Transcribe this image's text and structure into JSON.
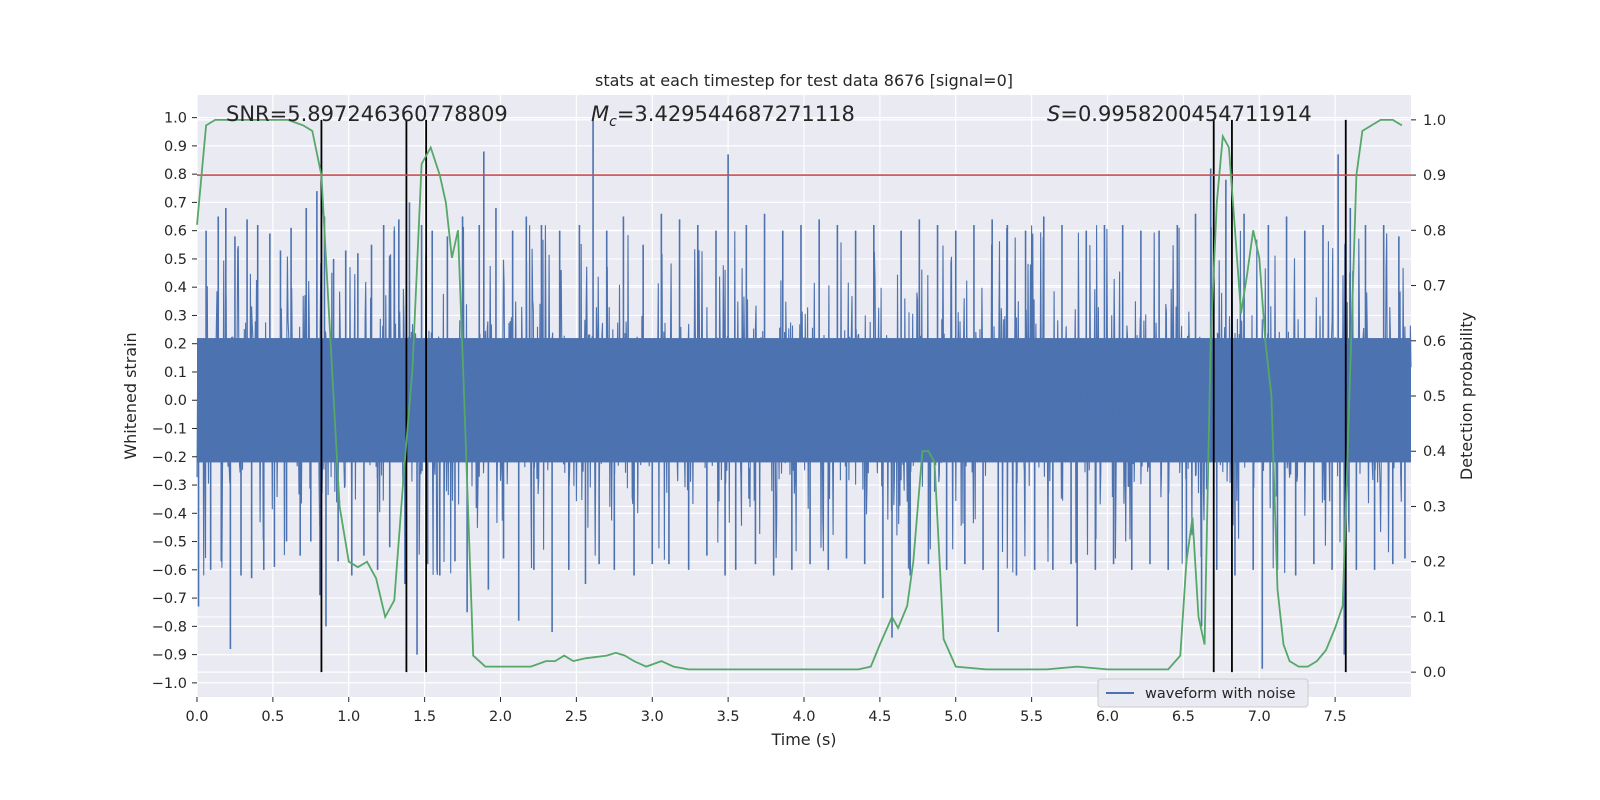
{
  "chart_data": {
    "type": "line",
    "title": "stats at each timestep for test data 8676 [signal=0]",
    "xlabel": "Time (s)",
    "ylabel": "Whitened strain",
    "y2label": "Detection probability",
    "xlim": [
      0,
      8
    ],
    "ylim": [
      -1.05,
      1.08
    ],
    "y2lim": [
      -0.045,
      1.045
    ],
    "x_ticks": [
      0.0,
      0.5,
      1.0,
      1.5,
      2.0,
      2.5,
      3.0,
      3.5,
      4.0,
      4.5,
      5.0,
      5.5,
      6.0,
      6.5,
      7.0,
      7.5
    ],
    "x_tick_labels": [
      "0.0",
      "0.5",
      "1.0",
      "1.5",
      "2.0",
      "2.5",
      "3.0",
      "3.5",
      "4.0",
      "4.5",
      "5.0",
      "5.5",
      "6.0",
      "6.5",
      "7.0",
      "7.5"
    ],
    "y_ticks": [
      1.0,
      0.9,
      0.8,
      0.7,
      0.6,
      0.5,
      0.4,
      0.3,
      0.2,
      0.1,
      0.0,
      -0.1,
      -0.2,
      -0.3,
      -0.4,
      -0.5,
      -0.6,
      -0.7,
      -0.8,
      -0.9,
      -1.0
    ],
    "y_tick_labels": [
      "1.0",
      "0.9",
      "0.8",
      "0.7",
      "0.6",
      "0.5",
      "0.4",
      "0.3",
      "0.2",
      "0.1",
      "0.0",
      "−0.1",
      "−0.2",
      "−0.3",
      "−0.4",
      "−0.5",
      "−0.6",
      "−0.7",
      "−0.8",
      "−0.9",
      "−1.0"
    ],
    "y2_ticks": [
      1.0,
      0.9,
      0.8,
      0.7,
      0.6,
      0.5,
      0.4,
      0.3,
      0.2,
      0.1,
      0.0
    ],
    "y2_tick_labels": [
      "1.0",
      "0.9",
      "0.8",
      "0.7",
      "0.6",
      "0.5",
      "0.4",
      "0.3",
      "0.2",
      "0.1",
      "0.0"
    ],
    "annotations": {
      "snr": "SNR=5.897246360778809",
      "mc_symbol": "M",
      "mc_sub": "c",
      "mc_value": "=3.429544687271118",
      "s_symbol": "S",
      "s_value": "=0.9958200454711914"
    },
    "threshold": 0.9,
    "vertical_lines_x": [
      0.82,
      1.38,
      1.51,
      6.7,
      6.82,
      7.57
    ],
    "legend": {
      "position": "lower-right",
      "entries": [
        "waveform with noise"
      ]
    },
    "grid": true,
    "series": [
      {
        "name": "waveform with noise",
        "axis": "left",
        "style": "noise",
        "color": "#4c72b0",
        "sample_count": 2000,
        "dense_band": [
          -0.43,
          0.43
        ],
        "spikes": [
          [
            0.01,
            -0.73
          ],
          [
            0.06,
            0.6
          ],
          [
            0.09,
            -0.6
          ],
          [
            0.14,
            0.65
          ],
          [
            0.16,
            -0.57
          ],
          [
            0.19,
            0.68
          ],
          [
            0.22,
            -0.88
          ],
          [
            0.25,
            0.58
          ],
          [
            0.29,
            -0.62
          ],
          [
            0.33,
            0.64
          ],
          [
            0.36,
            -0.63
          ],
          [
            0.4,
            0.62
          ],
          [
            0.44,
            -0.6
          ],
          [
            0.48,
            0.59
          ],
          [
            0.51,
            -0.59
          ],
          [
            0.55,
            0.53
          ],
          [
            0.59,
            -0.5
          ],
          [
            0.62,
            0.61
          ],
          [
            0.68,
            -0.55
          ],
          [
            0.72,
            0.68
          ],
          [
            0.75,
            -0.5
          ],
          [
            0.79,
            0.74
          ],
          [
            0.81,
            -0.69
          ],
          [
            0.84,
            0.65
          ],
          [
            0.85,
            -0.8
          ],
          [
            0.9,
            0.5
          ],
          [
            0.93,
            -0.57
          ],
          [
            0.98,
            0.53
          ],
          [
            1.02,
            -0.62
          ],
          [
            1.06,
            0.52
          ],
          [
            1.1,
            -0.55
          ],
          [
            1.15,
            0.55
          ],
          [
            1.19,
            -0.6
          ],
          [
            1.23,
            0.62
          ],
          [
            1.27,
            -0.52
          ],
          [
            1.3,
            0.6
          ],
          [
            1.33,
            0.64
          ],
          [
            1.37,
            -0.65
          ],
          [
            1.4,
            0.7
          ],
          [
            1.45,
            -0.9
          ],
          [
            1.48,
            0.62
          ],
          [
            1.52,
            -0.58
          ],
          [
            1.55,
            0.6
          ],
          [
            1.6,
            -0.62
          ],
          [
            1.65,
            0.58
          ],
          [
            1.7,
            -0.57
          ],
          [
            1.75,
            0.65
          ],
          [
            1.78,
            -0.75
          ],
          [
            1.86,
            0.62
          ],
          [
            1.89,
            0.88
          ],
          [
            1.92,
            -0.67
          ],
          [
            1.97,
            0.68
          ],
          [
            2.02,
            -0.56
          ],
          [
            2.08,
            0.6
          ],
          [
            2.12,
            -0.78
          ],
          [
            2.17,
            0.65
          ],
          [
            2.22,
            -0.6
          ],
          [
            2.27,
            0.62
          ],
          [
            2.34,
            -0.82
          ],
          [
            2.39,
            0.6
          ],
          [
            2.45,
            -0.6
          ],
          [
            2.52,
            0.62
          ],
          [
            2.56,
            -0.65
          ],
          [
            2.61,
            0.99
          ],
          [
            2.65,
            -0.58
          ],
          [
            2.7,
            0.6
          ],
          [
            2.75,
            -0.6
          ],
          [
            2.81,
            0.65
          ],
          [
            2.88,
            -0.62
          ],
          [
            2.94,
            0.55
          ],
          [
            3.0,
            -0.58
          ],
          [
            3.06,
            0.66
          ],
          [
            3.11,
            -0.58
          ],
          [
            3.18,
            0.64
          ],
          [
            3.24,
            -0.6
          ],
          [
            3.3,
            0.62
          ],
          [
            3.36,
            -0.55
          ],
          [
            3.42,
            0.6
          ],
          [
            3.48,
            -0.62
          ],
          [
            3.5,
            0.87
          ],
          [
            3.55,
            -0.6
          ],
          [
            3.62,
            0.62
          ],
          [
            3.68,
            -0.58
          ],
          [
            3.74,
            0.66
          ],
          [
            3.8,
            -0.62
          ],
          [
            3.86,
            0.6
          ],
          [
            3.92,
            -0.6
          ],
          [
            3.98,
            0.62
          ],
          [
            4.04,
            -0.58
          ],
          [
            4.1,
            0.64
          ],
          [
            4.16,
            -0.6
          ],
          [
            4.22,
            0.62
          ],
          [
            4.28,
            -0.56
          ],
          [
            4.34,
            0.6
          ],
          [
            4.4,
            -0.58
          ],
          [
            4.46,
            0.62
          ],
          [
            4.52,
            -0.7
          ],
          [
            4.58,
            -0.84
          ],
          [
            4.64,
            0.6
          ],
          [
            4.7,
            -0.62
          ],
          [
            4.76,
            0.64
          ],
          [
            4.82,
            -0.58
          ],
          [
            4.88,
            0.62
          ],
          [
            4.94,
            -0.6
          ],
          [
            5.0,
            0.6
          ],
          [
            5.06,
            -0.58
          ],
          [
            5.12,
            0.62
          ],
          [
            5.18,
            -0.6
          ],
          [
            5.24,
            0.64
          ],
          [
            5.28,
            -0.82
          ],
          [
            5.34,
            0.62
          ],
          [
            5.4,
            -0.62
          ],
          [
            5.46,
            0.6
          ],
          [
            5.52,
            -0.6
          ],
          [
            5.58,
            0.65
          ],
          [
            5.64,
            -0.6
          ],
          [
            5.7,
            0.62
          ],
          [
            5.76,
            -0.58
          ],
          [
            5.8,
            -0.8
          ],
          [
            5.86,
            0.6
          ],
          [
            5.92,
            -0.6
          ],
          [
            5.98,
            0.62
          ],
          [
            6.04,
            -0.58
          ],
          [
            6.1,
            0.62
          ],
          [
            6.16,
            -0.6
          ],
          [
            6.22,
            0.6
          ],
          [
            6.28,
            -0.58
          ],
          [
            6.34,
            0.6
          ],
          [
            6.4,
            -0.6
          ],
          [
            6.46,
            0.62
          ],
          [
            6.52,
            -0.58
          ],
          [
            6.58,
            0.66
          ],
          [
            6.62,
            -0.8
          ],
          [
            6.68,
            0.82
          ],
          [
            6.72,
            -0.6
          ],
          [
            6.78,
            0.78
          ],
          [
            6.84,
            -0.62
          ],
          [
            6.9,
            0.66
          ],
          [
            6.96,
            -0.6
          ],
          [
            7.02,
            -0.95
          ],
          [
            7.06,
            0.62
          ],
          [
            7.12,
            -0.6
          ],
          [
            7.18,
            0.65
          ],
          [
            7.24,
            -0.62
          ],
          [
            7.3,
            0.6
          ],
          [
            7.36,
            -0.58
          ],
          [
            7.42,
            0.62
          ],
          [
            7.48,
            -0.6
          ],
          [
            7.52,
            0.87
          ],
          [
            7.56,
            -0.9
          ],
          [
            7.6,
            0.68
          ],
          [
            7.64,
            -0.6
          ],
          [
            7.7,
            0.62
          ],
          [
            7.76,
            -0.6
          ],
          [
            7.82,
            0.62
          ],
          [
            7.88,
            -0.58
          ],
          [
            7.92,
            0.58
          ],
          [
            7.96,
            -0.56
          ]
        ]
      },
      {
        "name": "",
        "axis": "right",
        "style": "line",
        "color": "#55a868",
        "x": [
          0.0,
          0.06,
          0.12,
          0.2,
          0.3,
          0.4,
          0.5,
          0.6,
          0.7,
          0.76,
          0.82,
          0.88,
          0.94,
          1.0,
          1.06,
          1.12,
          1.18,
          1.24,
          1.3,
          1.36,
          1.42,
          1.48,
          1.54,
          1.6,
          1.64,
          1.68,
          1.72,
          1.76,
          1.82,
          1.9,
          2.0,
          2.1,
          2.2,
          2.3,
          2.36,
          2.42,
          2.48,
          2.56,
          2.7,
          2.76,
          2.82,
          2.88,
          2.96,
          3.06,
          3.14,
          3.24,
          3.4,
          3.6,
          3.8,
          4.0,
          4.2,
          4.36,
          4.44,
          4.5,
          4.58,
          4.62,
          4.68,
          4.72,
          4.78,
          4.82,
          4.86,
          4.92,
          5.0,
          5.2,
          5.4,
          5.6,
          5.8,
          6.0,
          6.2,
          6.4,
          6.48,
          6.52,
          6.56,
          6.6,
          6.64,
          6.68,
          6.72,
          6.76,
          6.8,
          6.84,
          6.88,
          6.92,
          6.96,
          7.0,
          7.04,
          7.08,
          7.12,
          7.16,
          7.2,
          7.26,
          7.32,
          7.38,
          7.44,
          7.5,
          7.55,
          7.6,
          7.64,
          7.68,
          7.74,
          7.8,
          7.88,
          7.94
        ],
        "y": [
          0.81,
          0.99,
          1.0,
          1.0,
          1.0,
          1.0,
          1.0,
          1.0,
          0.99,
          0.98,
          0.9,
          0.6,
          0.3,
          0.2,
          0.19,
          0.2,
          0.17,
          0.1,
          0.13,
          0.35,
          0.55,
          0.92,
          0.95,
          0.9,
          0.85,
          0.75,
          0.8,
          0.5,
          0.03,
          0.01,
          0.01,
          0.01,
          0.01,
          0.02,
          0.02,
          0.03,
          0.02,
          0.025,
          0.03,
          0.035,
          0.03,
          0.02,
          0.01,
          0.02,
          0.01,
          0.005,
          0.005,
          0.005,
          0.005,
          0.005,
          0.005,
          0.005,
          0.01,
          0.05,
          0.1,
          0.08,
          0.12,
          0.2,
          0.4,
          0.4,
          0.38,
          0.06,
          0.01,
          0.005,
          0.005,
          0.005,
          0.01,
          0.005,
          0.005,
          0.005,
          0.03,
          0.2,
          0.28,
          0.1,
          0.05,
          0.6,
          0.85,
          0.97,
          0.95,
          0.8,
          0.65,
          0.72,
          0.8,
          0.75,
          0.6,
          0.5,
          0.15,
          0.05,
          0.02,
          0.01,
          0.01,
          0.02,
          0.04,
          0.08,
          0.12,
          0.55,
          0.9,
          0.98,
          0.99,
          1.0,
          1.0,
          0.99
        ]
      },
      {
        "name": "",
        "axis": "right",
        "style": "hline",
        "color": "#c44e52"
      }
    ]
  },
  "colors": {
    "plot_background": "#eaeaf2",
    "grid": "#ffffff",
    "waveform": "#4c72b0",
    "probability": "#55a868",
    "threshold": "#c44e52",
    "vertical_lines": "#000000"
  }
}
